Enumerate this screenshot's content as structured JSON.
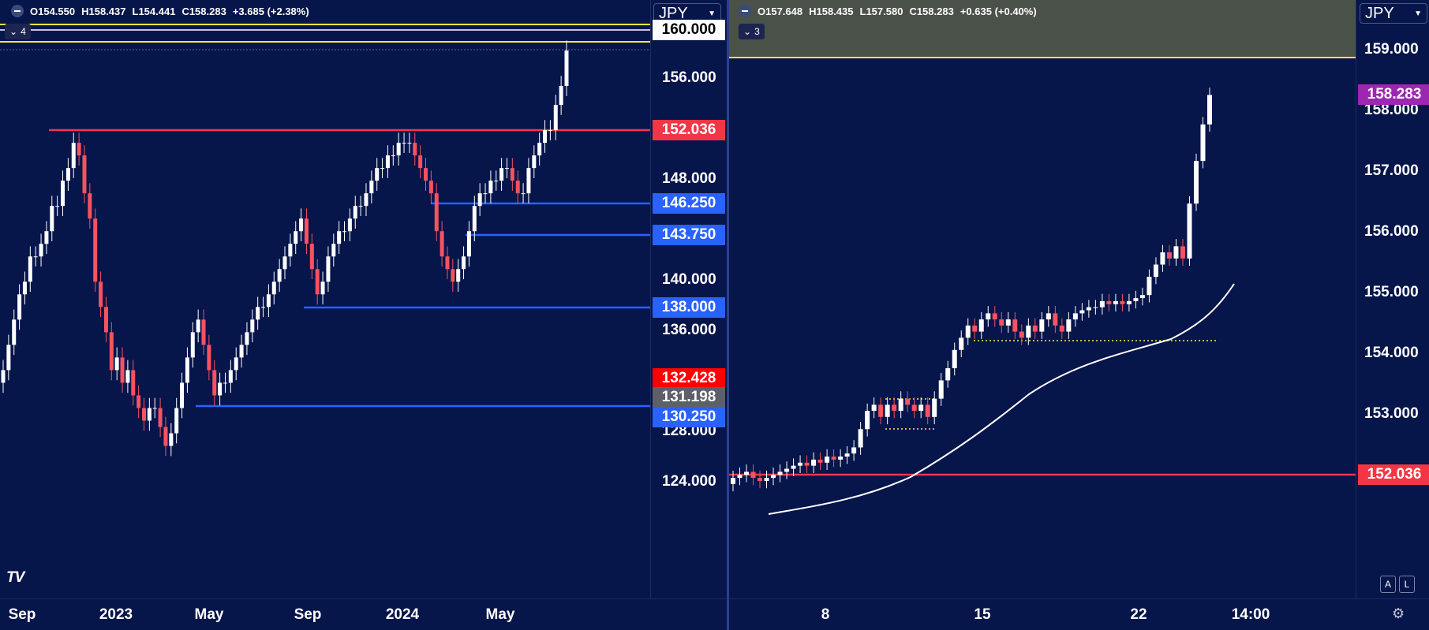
{
  "left": {
    "legend": {
      "open": "O154.550",
      "high": "H158.437",
      "low": "L154.441",
      "close": "C158.283",
      "change": "+3.685 (+2.38%)"
    },
    "indicator_count": "4",
    "currency": "JPY",
    "ticks": [
      "156.000",
      "148.000",
      "140.000",
      "136.000",
      "128.000",
      "124.000"
    ],
    "labels": [
      {
        "text": "160.000",
        "color": "#ffffff",
        "text_color": "#000000"
      },
      {
        "text": "152.036",
        "color": "#f23645",
        "text_color": "#ffffff"
      },
      {
        "text": "146.250",
        "color": "#2962ff",
        "text_color": "#ffffff"
      },
      {
        "text": "143.750",
        "color": "#2962ff",
        "text_color": "#ffffff"
      },
      {
        "text": "138.000",
        "color": "#2962ff",
        "text_color": "#ffffff"
      },
      {
        "text": "132.428",
        "color": "#ff0000",
        "text_color": "#ffffff"
      },
      {
        "text": "131.198",
        "color": "#5d606b",
        "text_color": "#ffffff"
      },
      {
        "text": "130.250",
        "color": "#2962ff",
        "text_color": "#ffffff"
      }
    ],
    "time_labels": [
      "Sep",
      "2023",
      "May",
      "Sep",
      "2024",
      "May"
    ],
    "logo": "TV"
  },
  "right": {
    "legend": {
      "open": "O157.648",
      "high": "H158.435",
      "low": "L157.580",
      "close": "C158.283",
      "change": "+0.635 (+0.40%)"
    },
    "indicator_count": "3",
    "currency": "JPY",
    "ticks": [
      "159.000",
      "158.000",
      "157.000",
      "156.000",
      "155.000",
      "154.000",
      "153.000"
    ],
    "labels": [
      {
        "text": "158.283",
        "color": "#9c27b0",
        "text_color": "#ffffff"
      },
      {
        "text": "152.036",
        "color": "#f23645",
        "text_color": "#ffffff"
      }
    ],
    "time_labels": [
      "8",
      "15",
      "22",
      "14:00"
    ],
    "buttons": {
      "auto": "A",
      "log": "L"
    }
  },
  "colors": {
    "up": "#ffffff",
    "down": "#f7525f",
    "background": "#06154a",
    "support": "#2962ff",
    "resistance": "#f23645",
    "zone": "#ffeb3b"
  }
}
